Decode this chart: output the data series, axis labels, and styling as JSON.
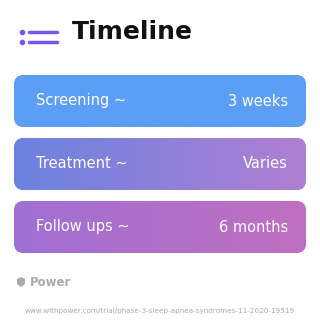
{
  "title": "Timeline",
  "background_color": "#ffffff",
  "rows": [
    {
      "label": "Screening ~",
      "value": "3 weeks",
      "color_left": "#5b9ef5",
      "color_right": "#5b9ef5"
    },
    {
      "label": "Treatment ~",
      "value": "Varies",
      "color_left": "#6b82e0",
      "color_right": "#b07fd4"
    },
    {
      "label": "Follow ups ~",
      "value": "6 months",
      "color_left": "#a06fd4",
      "color_right": "#c070c0"
    }
  ],
  "footer_logo_text": "Power",
  "footer_url": "www.withpower.com/trial/phase-3-sleep-apnea-syndromes-11-2020-19519",
  "footer_color": "#aaaaaa",
  "icon_color": "#7755ee",
  "title_fontsize": 18,
  "label_fontsize": 10.5,
  "value_fontsize": 10.5,
  "footer_fontsize": 5.2,
  "power_fontsize": 8.5
}
